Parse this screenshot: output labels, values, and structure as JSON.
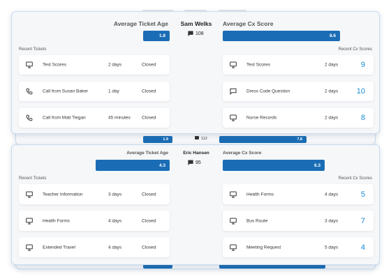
{
  "cards": [
    {
      "name": "Sam Welks",
      "messages": 108,
      "ticket_age_label": "Average Ticket Age",
      "ticket_age": 1.8,
      "cx_label": "Average Cx Score",
      "cx": 8.6,
      "tickets_label": "Recent Tickets",
      "cx_scores_label": "Recent Cx Scores",
      "tickets": [
        {
          "title": "Test Scores",
          "age": "2 days",
          "status": "Closed"
        },
        {
          "title": "Call from Susan Baker",
          "age": "1 day",
          "status": "Closed"
        },
        {
          "title": "Call from Matt Tiegan",
          "age": "45 minutes",
          "status": "Closed"
        }
      ],
      "cx_scores": [
        {
          "title": "Test Scores",
          "age": "2 days",
          "score": 9
        },
        {
          "title": "Dress Code Question",
          "age": "2 days",
          "score": 10
        },
        {
          "title": "Nurse Records",
          "age": "2 days",
          "score": 8
        }
      ]
    },
    {
      "name": "Eric Hansen",
      "messages": 95,
      "ticket_age_label": "Average Ticket Age",
      "ticket_age": 4.3,
      "cx_label": "Average Cx Score",
      "cx": 6.3,
      "tickets_label": "Recent Tickets",
      "cx_scores_label": "Recent Cx Scores",
      "tickets": [
        {
          "title": "Teacher Information",
          "age": "3 days",
          "status": "Closed"
        },
        {
          "title": "Health Forms",
          "age": "4 days",
          "status": "Closed"
        },
        {
          "title": "Extended Travel",
          "age": "4 days",
          "status": "Closed"
        }
      ],
      "cx_scores": [
        {
          "title": "Health Forms",
          "age": "4 days",
          "score": 5
        },
        {
          "title": "Bus Route",
          "age": "3 days",
          "score": 7
        },
        {
          "title": "Meeting Request",
          "age": "5 days",
          "score": 4
        }
      ]
    }
  ],
  "peek": {
    "ticket_age": 1.9,
    "messages": 112,
    "cx": 7.8
  }
}
